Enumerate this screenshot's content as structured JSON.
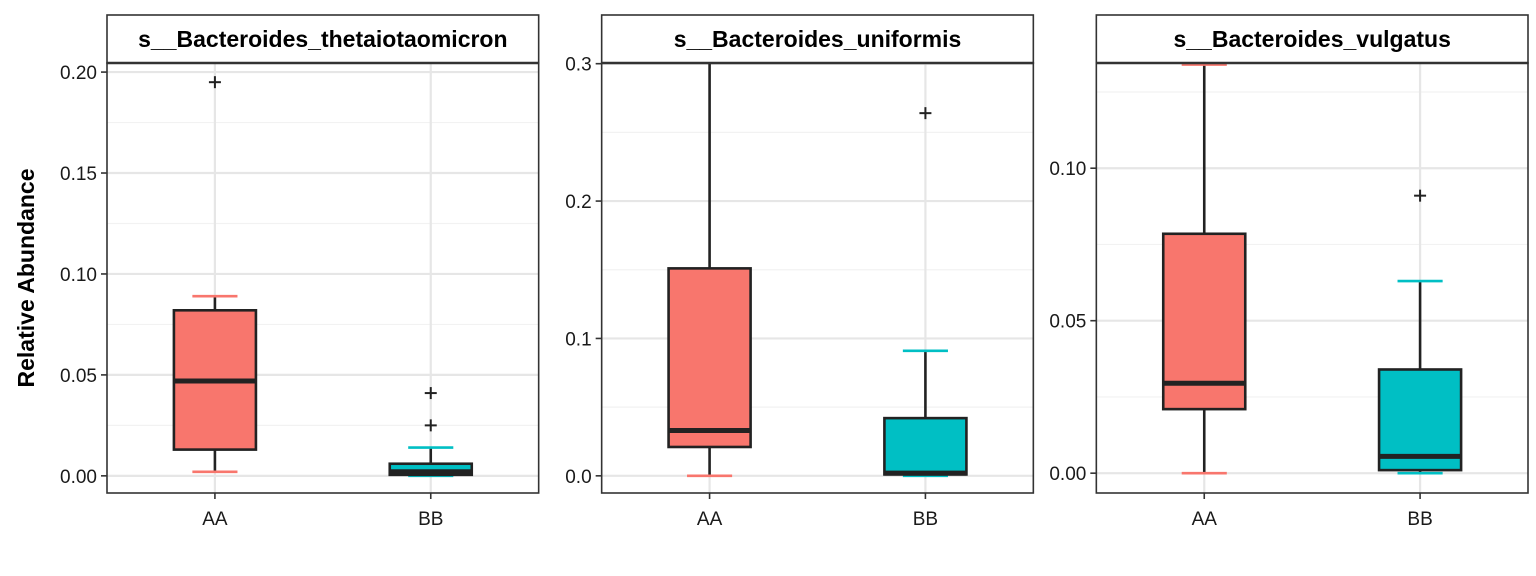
{
  "chart_data": {
    "type": "boxplot",
    "ylabel": "Relative Abundance",
    "xlabel": "",
    "grid": true,
    "categories": [
      "AA",
      "BB"
    ],
    "colors": {
      "AA": "#F8766D",
      "BB": "#00BFC4"
    },
    "panels": [
      {
        "title": "s__Bacteroides_thetaiotaomicron",
        "ylim": [
          -0.0085,
          0.2045
        ],
        "yticks": [
          0.0,
          0.05,
          0.1,
          0.15,
          0.2
        ],
        "ytick_labels": [
          "0.00",
          "0.05",
          "0.10",
          "0.15",
          "0.20"
        ],
        "boxes": [
          {
            "group": "AA",
            "min": 0.002,
            "q1": 0.013,
            "median": 0.047,
            "q3": 0.082,
            "max": 0.089,
            "outliers": [
              0.195
            ]
          },
          {
            "group": "BB",
            "min": 0.0,
            "q1": 0.0005,
            "median": 0.002,
            "q3": 0.006,
            "max": 0.014,
            "outliers": [
              0.025,
              0.041
            ]
          }
        ]
      },
      {
        "title": "s__Bacteroides_uniformis",
        "ylim": [
          -0.0125,
          0.3005
        ],
        "yticks": [
          0.0,
          0.1,
          0.2,
          0.3
        ],
        "ytick_labels": [
          "0.0",
          "0.1",
          "0.2",
          "0.3"
        ],
        "boxes": [
          {
            "group": "AA",
            "min": 0.0,
            "q1": 0.021,
            "median": 0.033,
            "q3": 0.151,
            "max": 0.314,
            "outliers": []
          },
          {
            "group": "BB",
            "min": 0.0,
            "q1": 0.001,
            "median": 0.002,
            "q3": 0.042,
            "max": 0.091,
            "outliers": [
              0.264
            ]
          }
        ]
      },
      {
        "title": "s__Bacteroides_vulgatus",
        "ylim": [
          -0.0065,
          0.1345
        ],
        "yticks": [
          0.0,
          0.05,
          0.1
        ],
        "ytick_labels": [
          "0.00",
          "0.05",
          "0.10"
        ],
        "boxes": [
          {
            "group": "AA",
            "min": 0.0,
            "q1": 0.021,
            "median": 0.0295,
            "q3": 0.0785,
            "max": 0.134,
            "outliers": []
          },
          {
            "group": "BB",
            "min": 0.0,
            "q1": 0.001,
            "median": 0.0055,
            "q3": 0.034,
            "max": 0.063,
            "outliers": [
              0.091
            ]
          }
        ]
      }
    ]
  }
}
